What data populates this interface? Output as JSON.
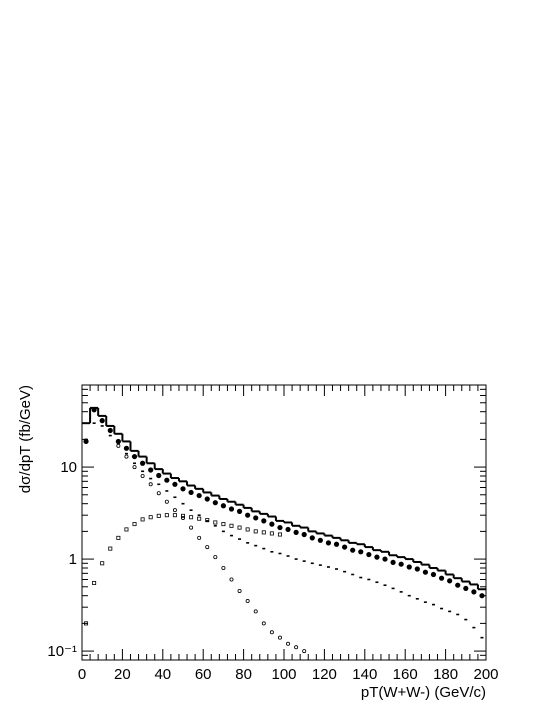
{
  "chart_data": {
    "type": "line",
    "xlabel": "pT(W+W-) (GeV/c)",
    "ylabel": "dσ/dpT (fb/GeV)",
    "ylog": true,
    "xlim": [
      0,
      200
    ],
    "xticks": [
      0,
      20,
      40,
      60,
      80,
      100,
      120,
      140,
      160,
      180,
      200
    ],
    "ylim": [
      0.08,
      78
    ],
    "yticks": [
      {
        "value": 0.1,
        "label": "10⁻¹"
      },
      1,
      10
    ],
    "x": [
      2,
      6,
      10,
      14,
      18,
      22,
      26,
      30,
      34,
      38,
      42,
      46,
      50,
      54,
      58,
      62,
      66,
      70,
      74,
      78,
      82,
      86,
      90,
      94,
      98,
      102,
      106,
      110,
      114,
      118,
      122,
      126,
      130,
      134,
      138,
      142,
      146,
      150,
      154,
      158,
      162,
      166,
      170,
      174,
      178,
      182,
      186,
      190,
      194,
      198
    ],
    "series": [
      {
        "marker": "hist",
        "color": "#000000",
        "values": [
          30,
          44,
          36,
          28,
          23,
          19,
          15,
          13,
          11,
          9.5,
          8.5,
          7.6,
          7,
          6.3,
          5.8,
          5.3,
          4.9,
          4.5,
          4.2,
          3.9,
          3.6,
          3.3,
          3.1,
          2.9,
          2.6,
          2.5,
          2.3,
          2.2,
          2.0,
          1.9,
          1.8,
          1.7,
          1.6,
          1.5,
          1.45,
          1.35,
          1.25,
          1.2,
          1.1,
          1.05,
          1.0,
          0.93,
          0.87,
          0.8,
          0.75,
          0.68,
          0.62,
          0.57,
          0.53,
          0.47
        ]
      },
      {
        "marker": "filled-circle",
        "color": "#000000",
        "values": [
          19,
          42,
          32,
          25,
          19,
          16,
          13,
          11,
          9.3,
          8.1,
          7.2,
          6.5,
          5.8,
          5.3,
          4.9,
          4.5,
          4.1,
          3.8,
          3.5,
          3.3,
          3.0,
          2.8,
          2.6,
          2.4,
          2.2,
          2.1,
          1.95,
          1.85,
          1.7,
          1.6,
          1.5,
          1.45,
          1.35,
          1.25,
          1.2,
          1.12,
          1.05,
          1.0,
          0.92,
          0.88,
          0.82,
          0.78,
          0.72,
          0.68,
          0.62,
          0.58,
          0.52,
          0.48,
          0.44,
          0.4
        ]
      },
      {
        "marker": "dash",
        "color": "#000000",
        "values": [
          20,
          30,
          28,
          22,
          18,
          14,
          11,
          9,
          7.5,
          6.5,
          5.5,
          4.7,
          4,
          3.4,
          3.0,
          2.6,
          2.3,
          2.0,
          1.8,
          1.65,
          1.5,
          1.4,
          1.3,
          1.2,
          1.15,
          1.08,
          1.0,
          0.95,
          0.9,
          0.86,
          0.82,
          0.78,
          0.73,
          0.68,
          0.63,
          0.6,
          0.56,
          0.52,
          0.48,
          0.44,
          0.4,
          0.37,
          0.34,
          0.32,
          0.29,
          0.27,
          0.25,
          0.22,
          0.18,
          0.14
        ]
      },
      {
        "marker": "open-square",
        "color": "#000000",
        "values": [
          0.2,
          0.55,
          0.9,
          1.3,
          1.7,
          2.1,
          2.4,
          2.7,
          2.85,
          2.95,
          3.0,
          3.0,
          2.95,
          2.85,
          2.75,
          2.65,
          2.5,
          2.4,
          2.3,
          2.2,
          2.1,
          2.0,
          1.95,
          1.9,
          1.85,
          null,
          null,
          null,
          null,
          null,
          null,
          null,
          null,
          null,
          null,
          null,
          null,
          null,
          null,
          null,
          null,
          null,
          null,
          null,
          null,
          null,
          null,
          null,
          null,
          null
        ]
      },
      {
        "marker": "open-circle",
        "color": "#000000",
        "values": [
          null,
          null,
          null,
          null,
          17,
          13,
          10,
          8,
          6.5,
          5.2,
          4.2,
          3.4,
          2.8,
          2.2,
          1.7,
          1.35,
          1.05,
          0.8,
          0.6,
          0.45,
          0.35,
          0.27,
          0.2,
          0.16,
          0.14,
          0.12,
          0.11,
          0.1,
          null,
          null,
          null,
          null,
          null,
          null,
          null,
          null,
          null,
          null,
          null,
          null,
          null,
          null,
          null,
          null,
          null,
          null,
          null,
          null,
          null,
          null
        ]
      }
    ]
  }
}
